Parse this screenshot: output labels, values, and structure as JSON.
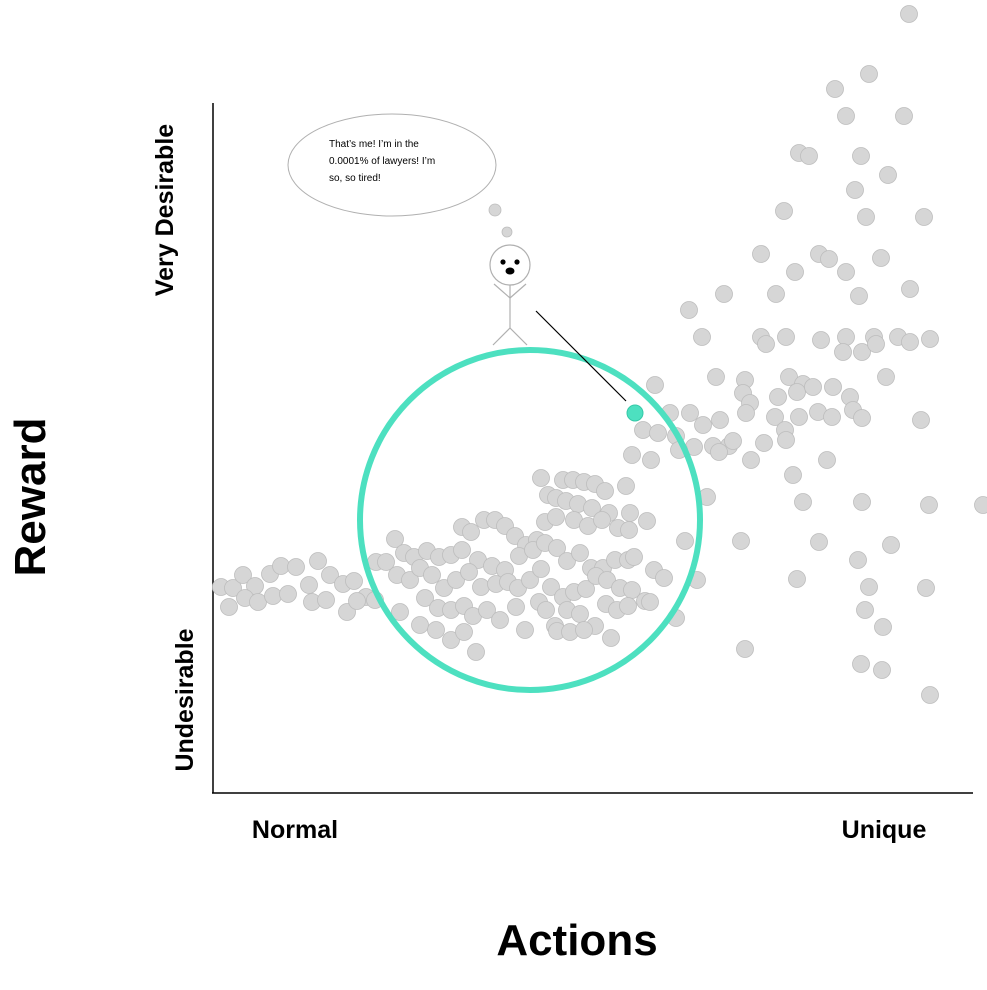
{
  "chart_data": {
    "type": "scatter",
    "title": "",
    "xlabel": "Actions",
    "ylabel": "Reward",
    "x_tick_labels": [
      "Normal",
      "Unique"
    ],
    "y_tick_labels": [
      "Undesirable",
      "Very Desirable"
    ],
    "grid": false,
    "colors": {
      "points_fill": "#d6d6d6",
      "points_stroke": "#bdbdbd",
      "highlight": "#4de0c0",
      "axis": "#000000"
    },
    "highlight_point": {
      "x": 635,
      "y": 413
    },
    "highlight_region": {
      "shape": "circle",
      "cx": 530,
      "cy": 520,
      "r": 170
    },
    "annotation": {
      "speech": "That’s me! I’m in the 0.0001% of lawyers! I’m so, so tired!",
      "speech_lines": [
        "That’s me! I’m in the",
        "0.0001% of lawyers! I’m",
        "so, so tired!"
      ],
      "figure": "stick-figure"
    },
    "points_note": "Points given in arbitrary plot units (0–987 horizontal, 0–990 vertical, top-left origin) read from the figure.",
    "points": [
      [
        909,
        14
      ],
      [
        869,
        74
      ],
      [
        835,
        89
      ],
      [
        846,
        116
      ],
      [
        904,
        116
      ],
      [
        799,
        153
      ],
      [
        809,
        156
      ],
      [
        861,
        156
      ],
      [
        888,
        175
      ],
      [
        855,
        190
      ],
      [
        784,
        211
      ],
      [
        866,
        217
      ],
      [
        924,
        217
      ],
      [
        761,
        254
      ],
      [
        819,
        254
      ],
      [
        829,
        259
      ],
      [
        881,
        258
      ],
      [
        795,
        272
      ],
      [
        846,
        272
      ],
      [
        910,
        289
      ],
      [
        724,
        294
      ],
      [
        776,
        294
      ],
      [
        859,
        296
      ],
      [
        689,
        310
      ],
      [
        702,
        337
      ],
      [
        761,
        337
      ],
      [
        786,
        337
      ],
      [
        766,
        344
      ],
      [
        821,
        340
      ],
      [
        846,
        337
      ],
      [
        874,
        337
      ],
      [
        898,
        337
      ],
      [
        910,
        342
      ],
      [
        930,
        339
      ],
      [
        843,
        352
      ],
      [
        862,
        352
      ],
      [
        876,
        344
      ],
      [
        886,
        377
      ],
      [
        716,
        377
      ],
      [
        745,
        380
      ],
      [
        789,
        377
      ],
      [
        803,
        384
      ],
      [
        743,
        393
      ],
      [
        750,
        403
      ],
      [
        778,
        397
      ],
      [
        797,
        392
      ],
      [
        813,
        387
      ],
      [
        833,
        387
      ],
      [
        850,
        397
      ],
      [
        655,
        385
      ],
      [
        670,
        413
      ],
      [
        690,
        413
      ],
      [
        703,
        425
      ],
      [
        720,
        420
      ],
      [
        746,
        413
      ],
      [
        775,
        417
      ],
      [
        785,
        430
      ],
      [
        799,
        417
      ],
      [
        818,
        412
      ],
      [
        832,
        417
      ],
      [
        853,
        410
      ],
      [
        862,
        418
      ],
      [
        921,
        420
      ],
      [
        643,
        430
      ],
      [
        658,
        433
      ],
      [
        676,
        436
      ],
      [
        694,
        447
      ],
      [
        713,
        446
      ],
      [
        729,
        446
      ],
      [
        733,
        441
      ],
      [
        764,
        443
      ],
      [
        786,
        440
      ],
      [
        632,
        455
      ],
      [
        651,
        460
      ],
      [
        679,
        450
      ],
      [
        719,
        452
      ],
      [
        751,
        460
      ],
      [
        827,
        460
      ],
      [
        541,
        478
      ],
      [
        563,
        480
      ],
      [
        573,
        480
      ],
      [
        584,
        482
      ],
      [
        595,
        484
      ],
      [
        605,
        491
      ],
      [
        626,
        486
      ],
      [
        548,
        495
      ],
      [
        556,
        498
      ],
      [
        566,
        501
      ],
      [
        578,
        504
      ],
      [
        592,
        508
      ],
      [
        609,
        513
      ],
      [
        630,
        513
      ],
      [
        647,
        521
      ],
      [
        707,
        497
      ],
      [
        793,
        475
      ],
      [
        803,
        502
      ],
      [
        862,
        502
      ],
      [
        929,
        505
      ],
      [
        983,
        505
      ],
      [
        462,
        527
      ],
      [
        471,
        532
      ],
      [
        484,
        520
      ],
      [
        495,
        520
      ],
      [
        505,
        526
      ],
      [
        515,
        536
      ],
      [
        526,
        545
      ],
      [
        537,
        540
      ],
      [
        545,
        522
      ],
      [
        556,
        517
      ],
      [
        574,
        520
      ],
      [
        588,
        526
      ],
      [
        602,
        520
      ],
      [
        618,
        528
      ],
      [
        629,
        530
      ],
      [
        395,
        539
      ],
      [
        404,
        553
      ],
      [
        414,
        557
      ],
      [
        427,
        551
      ],
      [
        439,
        557
      ],
      [
        451,
        555
      ],
      [
        462,
        550
      ],
      [
        478,
        560
      ],
      [
        492,
        566
      ],
      [
        505,
        570
      ],
      [
        519,
        556
      ],
      [
        533,
        550
      ],
      [
        545,
        543
      ],
      [
        557,
        548
      ],
      [
        567,
        561
      ],
      [
        580,
        553
      ],
      [
        591,
        568
      ],
      [
        603,
        568
      ],
      [
        615,
        560
      ],
      [
        628,
        560
      ],
      [
        634,
        557
      ],
      [
        654,
        570
      ],
      [
        664,
        578
      ],
      [
        685,
        541
      ],
      [
        741,
        541
      ],
      [
        819,
        542
      ],
      [
        858,
        560
      ],
      [
        891,
        545
      ],
      [
        221,
        587
      ],
      [
        233,
        588
      ],
      [
        243,
        575
      ],
      [
        255,
        586
      ],
      [
        270,
        574
      ],
      [
        281,
        566
      ],
      [
        296,
        567
      ],
      [
        309,
        585
      ],
      [
        318,
        561
      ],
      [
        330,
        575
      ],
      [
        343,
        584
      ],
      [
        354,
        581
      ],
      [
        366,
        597
      ],
      [
        376,
        562
      ],
      [
        386,
        562
      ],
      [
        397,
        575
      ],
      [
        410,
        580
      ],
      [
        420,
        568
      ],
      [
        432,
        575
      ],
      [
        444,
        588
      ],
      [
        456,
        580
      ],
      [
        469,
        572
      ],
      [
        481,
        587
      ],
      [
        496,
        584
      ],
      [
        508,
        582
      ],
      [
        518,
        588
      ],
      [
        530,
        580
      ],
      [
        541,
        569
      ],
      [
        551,
        587
      ],
      [
        563,
        597
      ],
      [
        574,
        592
      ],
      [
        586,
        589
      ],
      [
        596,
        576
      ],
      [
        607,
        580
      ],
      [
        620,
        588
      ],
      [
        632,
        590
      ],
      [
        645,
        601
      ],
      [
        697,
        580
      ],
      [
        797,
        579
      ],
      [
        869,
        587
      ],
      [
        926,
        588
      ],
      [
        229,
        607
      ],
      [
        245,
        598
      ],
      [
        258,
        602
      ],
      [
        273,
        596
      ],
      [
        288,
        594
      ],
      [
        312,
        602
      ],
      [
        326,
        600
      ],
      [
        347,
        612
      ],
      [
        357,
        601
      ],
      [
        375,
        600
      ],
      [
        400,
        612
      ],
      [
        425,
        598
      ],
      [
        438,
        608
      ],
      [
        451,
        610
      ],
      [
        464,
        606
      ],
      [
        473,
        616
      ],
      [
        487,
        610
      ],
      [
        500,
        620
      ],
      [
        516,
        607
      ],
      [
        525,
        630
      ],
      [
        539,
        602
      ],
      [
        546,
        610
      ],
      [
        555,
        626
      ],
      [
        567,
        610
      ],
      [
        580,
        614
      ],
      [
        595,
        626
      ],
      [
        606,
        604
      ],
      [
        617,
        610
      ],
      [
        628,
        606
      ],
      [
        650,
        602
      ],
      [
        676,
        618
      ],
      [
        865,
        610
      ],
      [
        883,
        627
      ],
      [
        420,
        625
      ],
      [
        436,
        630
      ],
      [
        451,
        640
      ],
      [
        464,
        632
      ],
      [
        476,
        652
      ],
      [
        557,
        631
      ],
      [
        570,
        632
      ],
      [
        584,
        630
      ],
      [
        611,
        638
      ],
      [
        745,
        649
      ],
      [
        861,
        664
      ],
      [
        882,
        670
      ],
      [
        930,
        695
      ]
    ]
  }
}
